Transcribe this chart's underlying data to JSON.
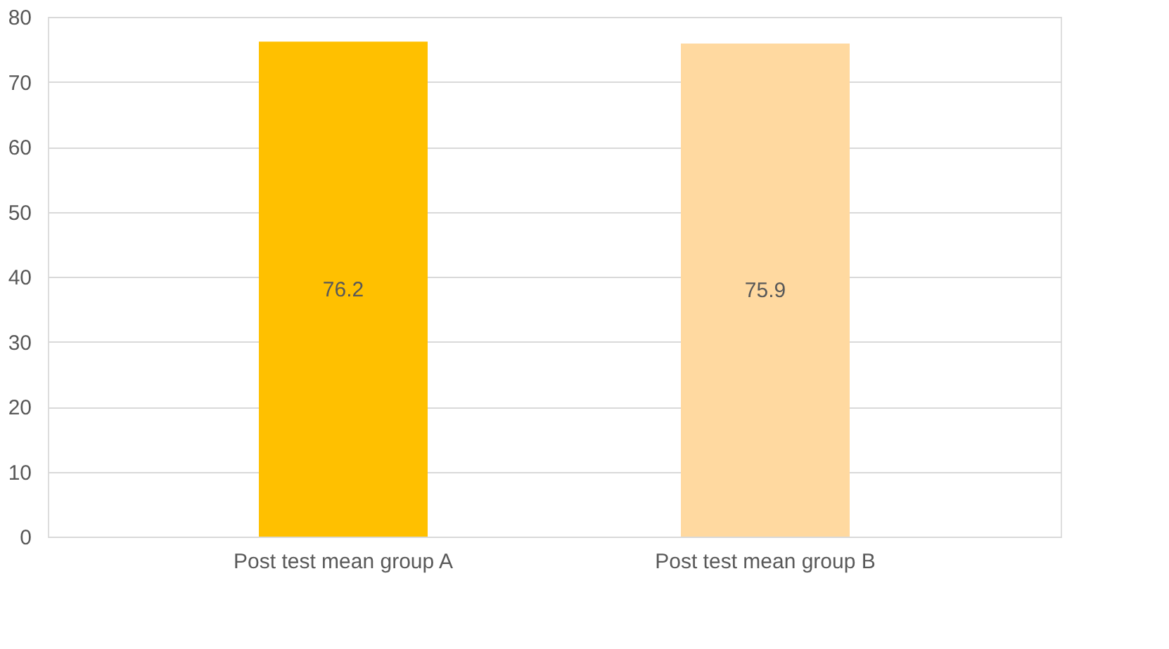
{
  "chart_data": {
    "type": "bar",
    "categories": [
      "Post test mean group A",
      "Post test mean group B"
    ],
    "values": [
      76.2,
      75.9
    ],
    "colors": [
      "#ffc000",
      "#ffd9a0"
    ],
    "ylim": [
      0,
      80
    ],
    "yticks": [
      0,
      10,
      20,
      30,
      40,
      50,
      60,
      70,
      80
    ],
    "grid": "y",
    "data_labels": true
  }
}
